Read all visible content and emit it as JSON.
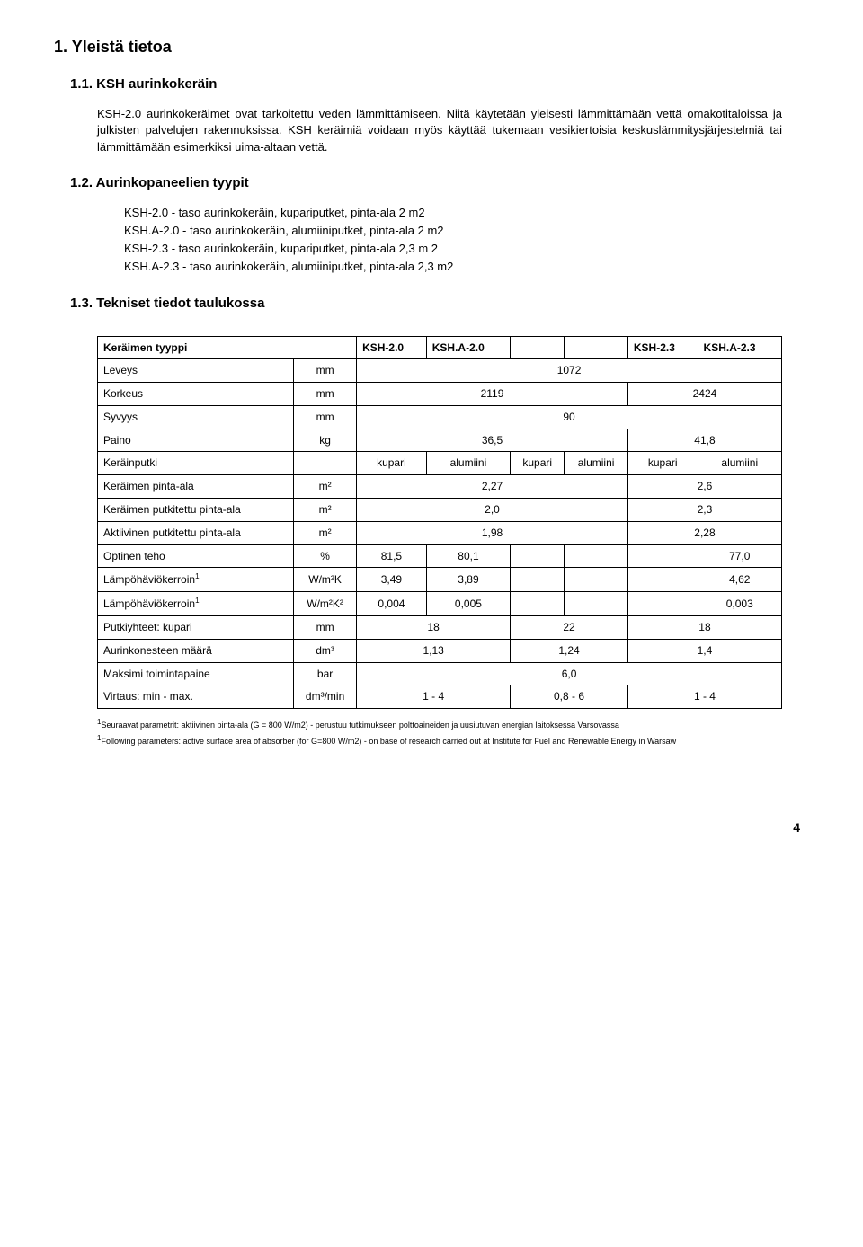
{
  "headings": {
    "h1": "1. Yleistä tietoa",
    "h1_1": "1.1. KSH aurinkokeräin",
    "h1_2": "1.2. Aurinkopaneelien tyypit",
    "h1_3": "1.3. Tekniset tiedot taulukossa"
  },
  "paragraphs": {
    "p1": "KSH-2.0 aurinkokeräimet ovat tarkoitettu veden lämmittämiseen. Niitä käytetään yleisesti lämmittämään vettä  omakotitaloissa ja julkisten palvelujen rakennuksissa. KSH keräimiä voidaan myös käyttää tukemaan vesikiertoisia keskuslämmitysjärjestelmiä tai lämmittämään esimerkiksi uima-altaan vettä."
  },
  "types": {
    "t1": "KSH-2.0 - taso aurinkokeräin, kupariputket, pinta-ala 2 m2",
    "t2": "KSH.A-2.0 - taso aurinkokeräin, alumiiniputket, pinta-ala 2 m2",
    "t3": "KSH-2.3 - taso aurinkokeräin, kupariputket, pinta-ala 2,3 m 2",
    "t4": "KSH.A-2.3 - taso aurinkokeräin, alumiiniputket, pinta-ala 2,3 m2"
  },
  "table": {
    "header": {
      "type_label": "Keräimen tyyppi",
      "c1": "KSH-2.0",
      "c2": "KSH.A-2.0",
      "c3": "",
      "c4": "",
      "c5": "KSH-2.3",
      "c6": "KSH.A-2.3"
    },
    "rows": {
      "leveys": {
        "label": "Leveys",
        "unit": "mm",
        "val": "1072"
      },
      "korkeus": {
        "label": "Korkeus",
        "unit": "mm",
        "v1": "2119",
        "v2": "2424"
      },
      "syvyys": {
        "label": "Syvyys",
        "unit": "mm",
        "val": "90"
      },
      "paino": {
        "label": "Paino",
        "unit": "kg",
        "v1": "36,5",
        "v2": "41,8"
      },
      "kerainputki": {
        "label": "Keräinputki",
        "unit": "",
        "v1": "kupari",
        "v2": "alumiini",
        "v3": "kupari",
        "v4": "alumiini",
        "v5": "kupari",
        "v6": "alumiini"
      },
      "pinta": {
        "label": "Keräimen pinta-ala",
        "unit": "m²",
        "v1": "2,27",
        "v2": "2,6"
      },
      "putkitettu": {
        "label": "Keräimen putkitettu pinta-ala",
        "unit": "m²",
        "v1": "2,0",
        "v2": "2,3"
      },
      "aktiivinen": {
        "label": "Aktiivinen putkitettu pinta-ala",
        "unit": "m²",
        "v1": "1,98",
        "v2": "2,28"
      },
      "optinen": {
        "label": "Optinen teho",
        "unit": "%",
        "v1": "81,5",
        "v2": "80,1",
        "v3": "",
        "v4": "",
        "v5": "",
        "v6": "77,0"
      },
      "lampo1": {
        "label": "Lämpöhäviökerroin",
        "sup": "1",
        "unit": "W/m²K",
        "v1": "3,49",
        "v2": "3,89",
        "v3": "",
        "v4": "",
        "v5": "",
        "v6": "4,62"
      },
      "lampo2": {
        "label": "Lämpöhäviökerroin",
        "sup": "1",
        "unit": "W/m²K²",
        "v1": "0,004",
        "v2": "0,005",
        "v3": "",
        "v4": "",
        "v5": "",
        "v6": "0,003"
      },
      "putkiyhteet": {
        "label": "Putkiyhteet: kupari",
        "unit": "mm",
        "v1": "18",
        "v2": "22",
        "v3": "18"
      },
      "aurinkon": {
        "label": "Aurinkonesteen määrä",
        "unit": "dm³",
        "v1": "1,13",
        "v2": "1,24",
        "v3": "1,4"
      },
      "maksimi": {
        "label": "Maksimi toimintapaine",
        "unit": "bar",
        "val": "6,0"
      },
      "virtaus": {
        "label": "Virtaus: min - max.",
        "unit": "dm³/min",
        "v1": "1 - 4",
        "v2": "0,8 - 6",
        "v3": "1 - 4"
      }
    }
  },
  "footnotes": {
    "f1_sup": "1",
    "f1": "Seuraavat parametrit: aktiivinen pinta-ala (G = 800 W/m2) - perustuu tutkimukseen polttoaineiden ja uusiutuvan energian laitoksessa Varsovassa",
    "f2_sup": "1",
    "f2": "Following parameters: active surface area of absorber (for G=800 W/m2) - on base of research carried out at Institute for Fuel and Renewable Energy in Warsaw"
  },
  "pagenum": "4"
}
